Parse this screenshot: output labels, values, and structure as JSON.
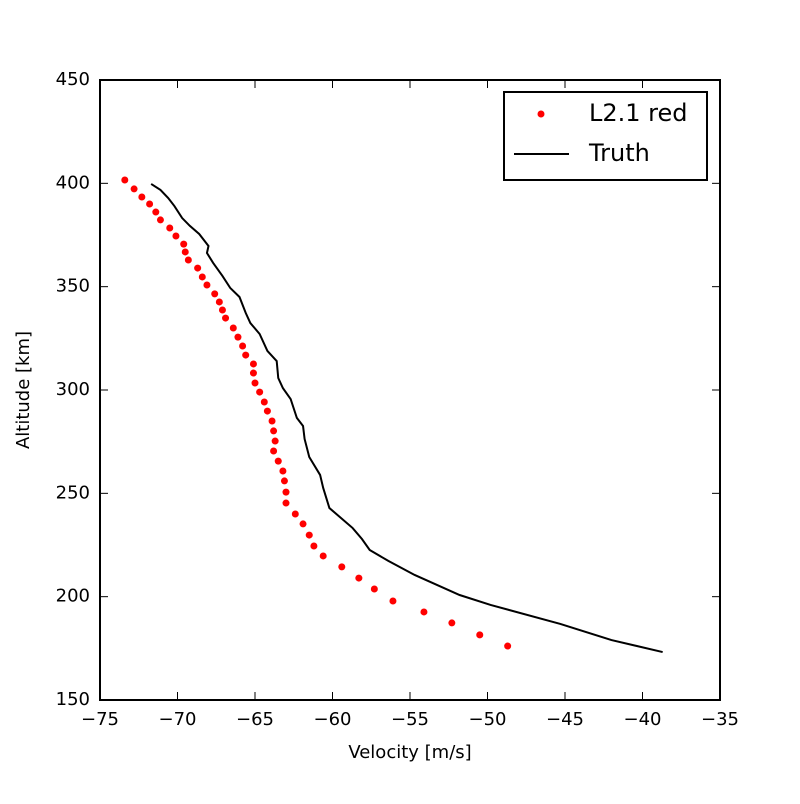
{
  "chart_data": {
    "type": "scatter-line",
    "xlabel": "Velocity [m/s]",
    "ylabel": "Altitude [km]",
    "xlim": [
      -75,
      -35
    ],
    "ylim": [
      150,
      450
    ],
    "xticks": [
      {
        "value": -75,
        "label": "−75"
      },
      {
        "value": -70,
        "label": "−70"
      },
      {
        "value": -65,
        "label": "−65"
      },
      {
        "value": -60,
        "label": "−60"
      },
      {
        "value": -55,
        "label": "−55"
      },
      {
        "value": -50,
        "label": "−50"
      },
      {
        "value": -45,
        "label": "−45"
      },
      {
        "value": -40,
        "label": "−40"
      },
      {
        "value": -35,
        "label": "−35"
      }
    ],
    "yticks": [
      150,
      200,
      250,
      300,
      350,
      400,
      450
    ],
    "legend": "upper right",
    "series": [
      {
        "name": "L2.1 red",
        "type": "scatter",
        "color": "#ff0000",
        "x": [
          -73.4,
          -72.8,
          -72.3,
          -71.8,
          -71.4,
          -71.1,
          -70.5,
          -70.1,
          -69.6,
          -69.5,
          -69.3,
          -68.7,
          -68.4,
          -68.1,
          -67.6,
          -67.3,
          -67.1,
          -66.9,
          -66.4,
          -66.1,
          -65.8,
          -65.6,
          -65.1,
          -65.1,
          -65.0,
          -64.7,
          -64.4,
          -64.2,
          -63.9,
          -63.8,
          -63.7,
          -63.8,
          -63.5,
          -63.2,
          -63.1,
          -63.0,
          -63.0,
          -62.4,
          -61.9,
          -61.5,
          -61.2,
          -60.6,
          -59.4,
          -58.3,
          -57.3,
          -56.1,
          -54.1,
          -52.3,
          -50.5,
          -48.7
        ],
        "values": [
          401.6,
          397.3,
          393.4,
          390.0,
          386.1,
          382.3,
          378.4,
          374.5,
          370.6,
          366.8,
          362.9,
          359.0,
          354.7,
          350.8,
          346.5,
          342.6,
          338.7,
          334.8,
          330.0,
          325.6,
          321.3,
          316.9,
          312.6,
          308.2,
          303.4,
          299.0,
          294.2,
          289.8,
          285.0,
          280.2,
          275.3,
          270.5,
          265.6,
          260.8,
          256.0,
          250.6,
          245.3,
          240.0,
          235.2,
          229.8,
          224.5,
          219.7,
          214.4,
          209.0,
          203.7,
          197.9,
          192.6,
          187.3,
          181.5,
          176.1
        ]
      },
      {
        "name": "Truth",
        "type": "line",
        "color": "#000000",
        "x": [
          -71.7,
          -71.1,
          -70.6,
          -70.2,
          -69.7,
          -69.2,
          -68.6,
          -68.0,
          -68.1,
          -67.7,
          -67.1,
          -66.6,
          -66.0,
          -65.6,
          -65.3,
          -64.7,
          -64.2,
          -63.6,
          -63.5,
          -63.2,
          -62.7,
          -62.3,
          -61.9,
          -61.8,
          -61.5,
          -60.8,
          -60.6,
          -60.2,
          -58.7,
          -58.1,
          -57.6,
          -56.4,
          -54.7,
          -51.8,
          -49.8,
          -45.3,
          -42.0,
          -38.7
        ],
        "values": [
          399.7,
          396.8,
          392.9,
          389.0,
          383.2,
          379.4,
          375.5,
          369.7,
          366.3,
          361.5,
          355.2,
          349.4,
          345.0,
          337.3,
          332.4,
          327.1,
          318.9,
          314.0,
          305.8,
          300.9,
          295.6,
          286.5,
          282.6,
          276.3,
          267.6,
          258.9,
          252.6,
          242.9,
          233.2,
          227.9,
          222.6,
          217.3,
          210.5,
          200.8,
          196.0,
          186.8,
          179.0,
          173.2
        ]
      }
    ]
  }
}
